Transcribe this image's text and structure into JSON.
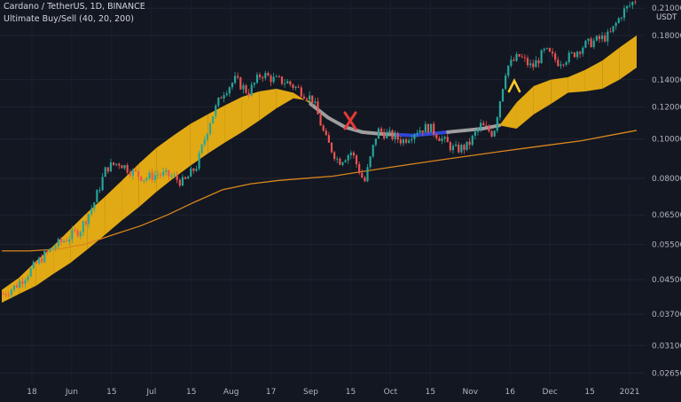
{
  "header": {
    "title": "Cardano / TetherUS, 1D, BINANCE",
    "indicator": "Ultimate Buy/Sell (40, 20, 200)"
  },
  "chart_data": {
    "type": "candlestick",
    "symbol": "ADAUSDT",
    "exchange": "BINANCE",
    "interval": "1D",
    "y_scale": "log",
    "ylim": [
      0.025,
      0.22
    ],
    "currency_label": "USDT",
    "y_ticks": [
      "0.02650",
      "0.03100",
      "0.03700",
      "0.04500",
      "0.05500",
      "0.06500",
      "0.08000",
      "0.10000",
      "0.12000",
      "0.14000",
      "0.18000",
      "0.21000"
    ],
    "x_ticks": [
      "18",
      "Jun",
      "15",
      "Jul",
      "15",
      "Aug",
      "17",
      "Sep",
      "15",
      "Oct",
      "15",
      "Nov",
      "16",
      "Dec",
      "15",
      "2021"
    ],
    "close_weekly": [
      0.0415,
      0.0435,
      0.047,
      0.051,
      0.0545,
      0.057,
      0.06,
      0.069,
      0.085,
      0.0875,
      0.083,
      0.08,
      0.082,
      0.081,
      0.078,
      0.086,
      0.11,
      0.13,
      0.14,
      0.13,
      0.145,
      0.14,
      0.138,
      0.132,
      0.125,
      0.1,
      0.088,
      0.093,
      0.078,
      0.105,
      0.102,
      0.099,
      0.105,
      0.107,
      0.1,
      0.094,
      0.096,
      0.108,
      0.103,
      0.15,
      0.16,
      0.15,
      0.165,
      0.155,
      0.16,
      0.17,
      0.175,
      0.18,
      0.205,
      0.22
    ],
    "series": [
      {
        "name": "Ultimate Buy/Sell upper band",
        "color": "#e1a914",
        "values": [
          0.0425,
          0.0455,
          0.05,
          0.0545,
          0.06,
          0.066,
          0.072,
          0.079,
          0.087,
          0.095,
          0.102,
          0.109,
          0.115,
          0.121,
          0.127,
          0.131,
          0.133,
          0.13,
          0.122,
          0.113,
          0.107,
          0.104,
          0.103,
          0.1025,
          0.102,
          0.103,
          0.104,
          0.105,
          0.106,
          0.108,
          0.123,
          0.135,
          0.14,
          0.142,
          0.148,
          0.156,
          0.168,
          0.18
        ]
      },
      {
        "name": "Ultimate Buy/Sell lower band",
        "color": "#e1a914",
        "values": [
          0.0395,
          0.0415,
          0.0435,
          0.0465,
          0.0495,
          0.0535,
          0.058,
          0.063,
          0.068,
          0.074,
          0.08,
          0.086,
          0.092,
          0.098,
          0.104,
          0.111,
          0.119,
          0.126,
          0.124,
          0.113,
          0.107,
          0.104,
          0.103,
          0.1025,
          0.102,
          0.103,
          0.104,
          0.105,
          0.106,
          0.108,
          0.106,
          0.115,
          0.122,
          0.13,
          0.131,
          0.133,
          0.14,
          0.15
        ]
      },
      {
        "name": "200 MA",
        "color": "#d9861c",
        "values": [
          0.053,
          0.053,
          0.0535,
          0.055,
          0.058,
          0.061,
          0.065,
          0.07,
          0.075,
          0.0775,
          0.079,
          0.08,
          0.081,
          0.083,
          0.085,
          0.087,
          0.089,
          0.091,
          0.093,
          0.095,
          0.097,
          0.099,
          0.102,
          0.105
        ]
      }
    ],
    "signals": [
      {
        "type": "sell",
        "marker": "X",
        "color": "#e53935"
      },
      {
        "type": "buy",
        "marker": "^",
        "color": "#ffca28"
      }
    ]
  }
}
